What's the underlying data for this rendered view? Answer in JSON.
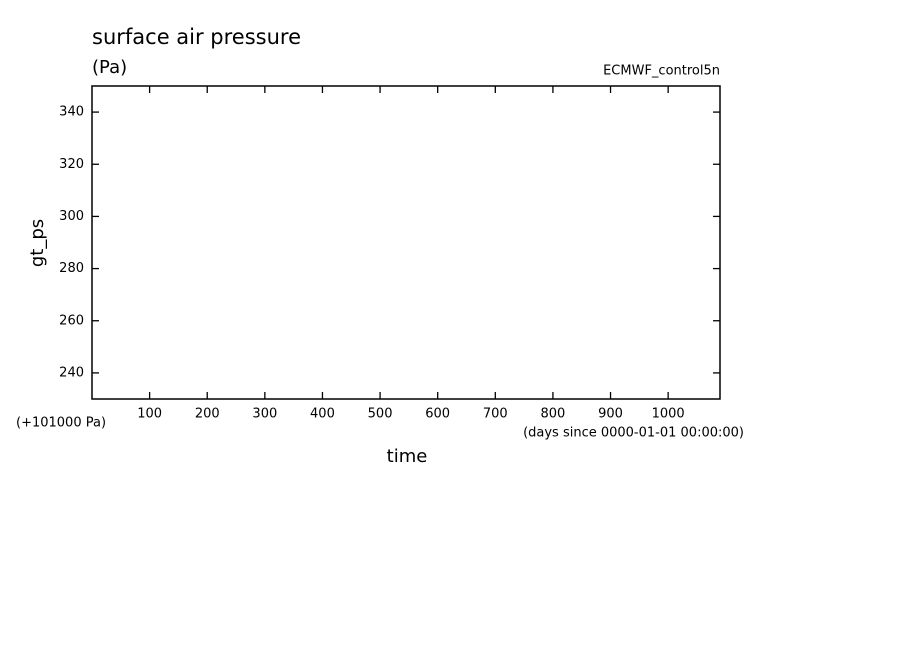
{
  "chart_data": {
    "type": "line",
    "title": "surface air pressure",
    "subtitle": "(Pa)",
    "annotation": "ECMWF_control5n",
    "ylabel": "gt_ps",
    "xlabel": "time",
    "x_units": "(days since 0000-01-01 00:00:00)",
    "y_offset": "(+101000 Pa)",
    "xlim": [
      0,
      1090
    ],
    "xticks": [
      100,
      200,
      300,
      400,
      500,
      600,
      700,
      800,
      900,
      1000
    ],
    "ylim": [
      230,
      350
    ],
    "yticks": [
      240,
      260,
      280,
      300,
      320,
      340
    ],
    "series": []
  }
}
